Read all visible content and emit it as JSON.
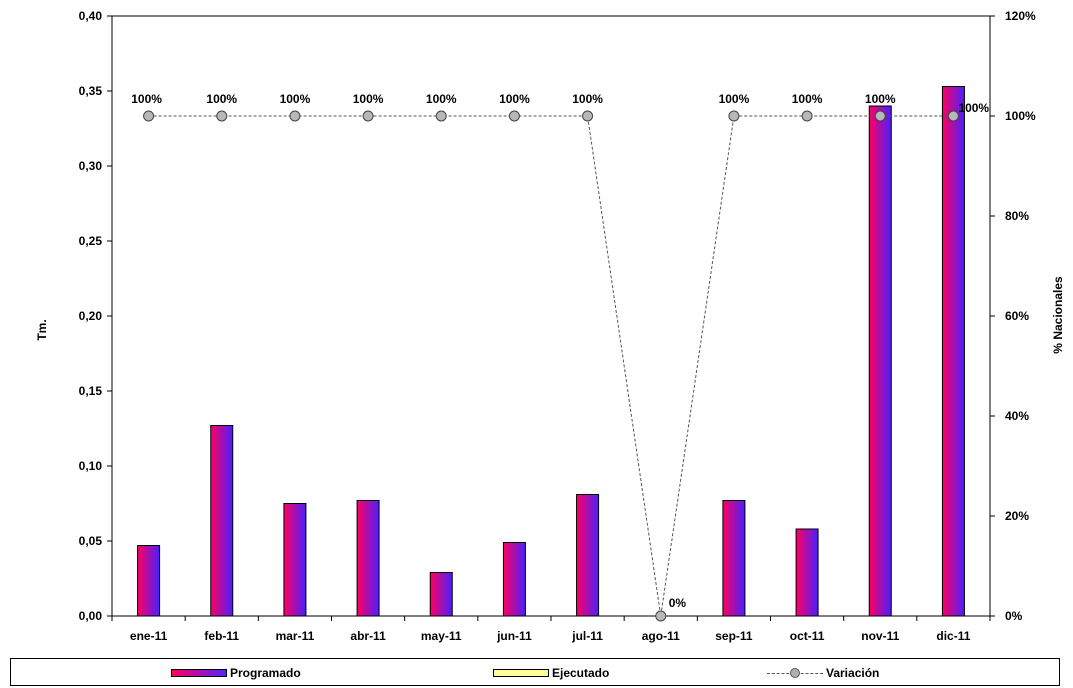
{
  "chart_data": {
    "type": "bar",
    "categories": [
      "ene-11",
      "feb-11",
      "mar-11",
      "abr-11",
      "may-11",
      "jun-11",
      "jul-11",
      "ago-11",
      "sep-11",
      "oct-11",
      "nov-11",
      "dic-11"
    ],
    "series": [
      {
        "name": "Programado",
        "type": "bar",
        "axis": "left",
        "color": "#ff0060",
        "values": [
          0.047,
          0.127,
          0.075,
          0.077,
          0.029,
          0.049,
          0.081,
          0.0,
          0.077,
          0.058,
          0.34,
          0.353
        ]
      },
      {
        "name": "Ejecutado",
        "type": "bar",
        "axis": "left",
        "color": "#ffff99",
        "values": [
          0,
          0,
          0,
          0,
          0,
          0,
          0,
          0,
          0,
          0,
          0,
          0
        ]
      },
      {
        "name": "Variación",
        "type": "line",
        "axis": "right",
        "color": "#555555",
        "values": [
          100,
          100,
          100,
          100,
          100,
          100,
          100,
          0,
          100,
          100,
          100,
          100
        ],
        "labels": [
          "100%",
          "100%",
          "100%",
          "100%",
          "100%",
          "100%",
          "100%",
          "0%",
          "100%",
          "100%",
          "100%",
          "100%"
        ]
      }
    ],
    "ylabel": "Tm.",
    "y2label": "% Nacionales",
    "ylim": [
      0,
      0.4
    ],
    "y2lim": [
      0,
      120
    ],
    "yticks": [
      "0,00",
      "0,05",
      "0,10",
      "0,15",
      "0,20",
      "0,25",
      "0,30",
      "0,35",
      "0,40"
    ],
    "y2ticks": [
      "0%",
      "20%",
      "40%",
      "60%",
      "80%",
      "100%",
      "120%"
    ],
    "grid": false,
    "legend_position": "bottom",
    "legend": [
      {
        "name": "Programado"
      },
      {
        "name": "Ejecutado"
      },
      {
        "name": "Variación"
      }
    ]
  }
}
